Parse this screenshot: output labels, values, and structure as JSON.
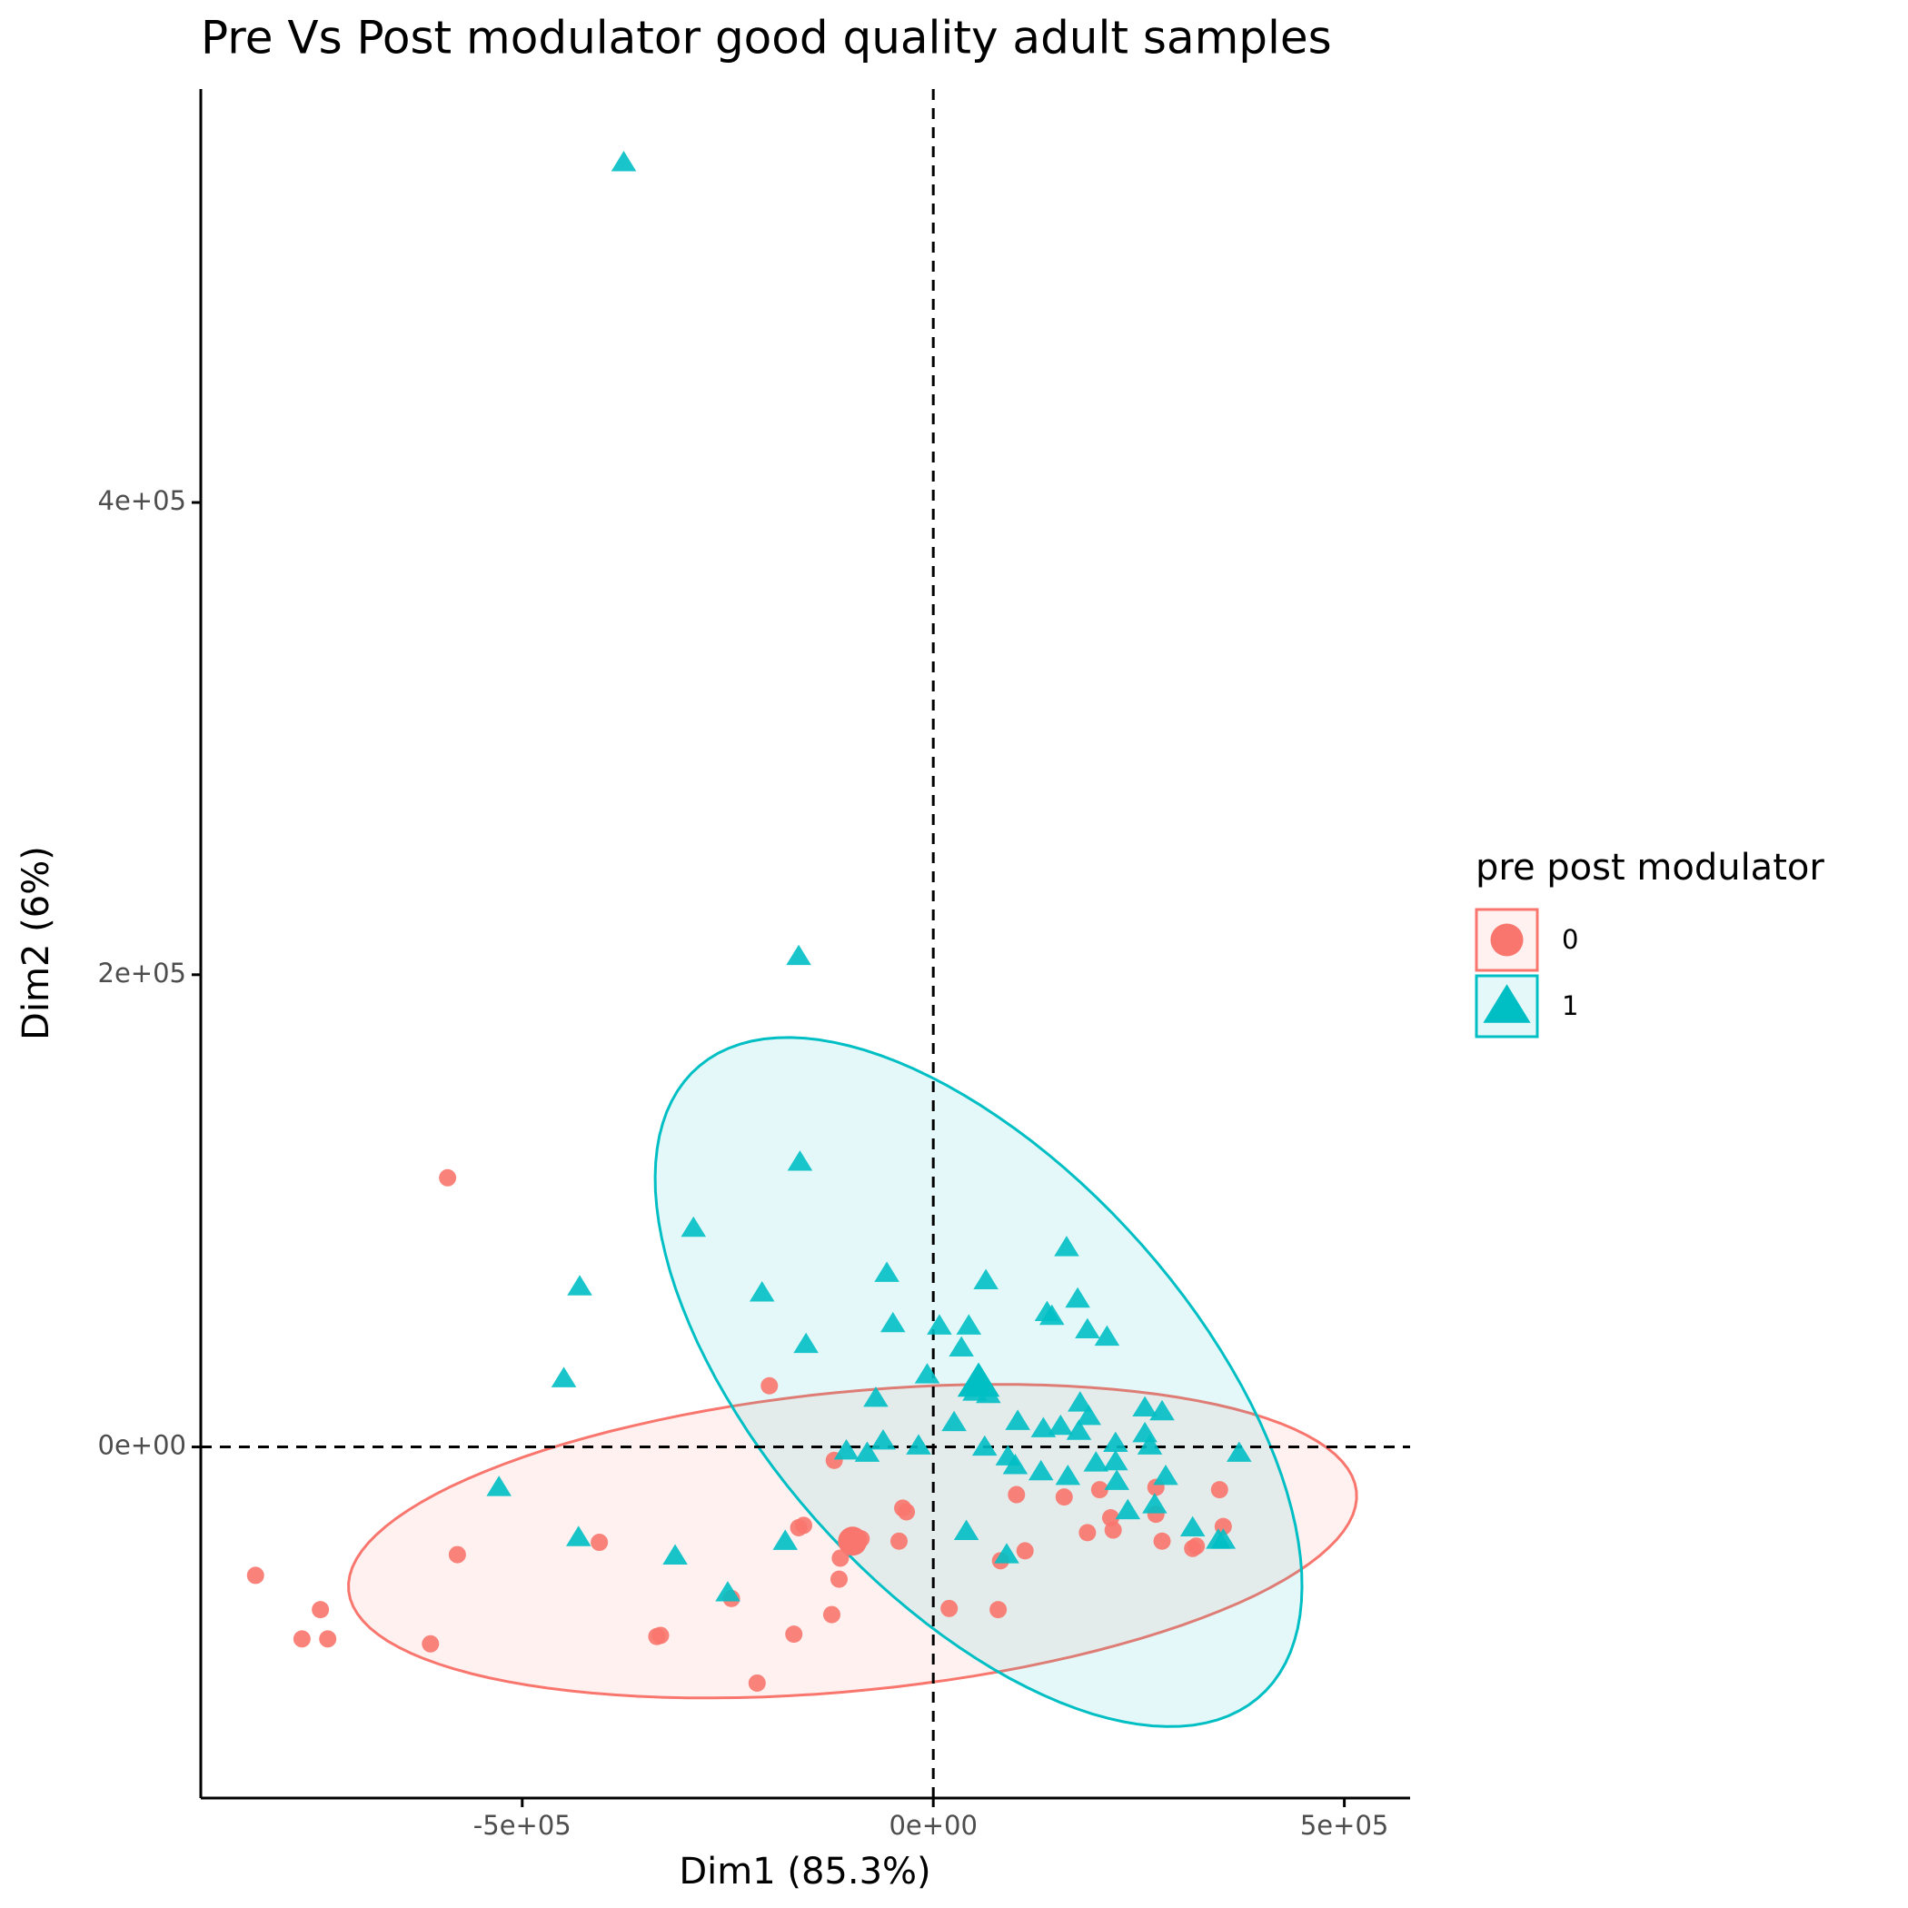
{
  "chart_data": {
    "type": "scatter",
    "title": "Pre Vs Post modulator good quality adult samples",
    "x_label": "Dim1 (85.3%)",
    "y_label": "Dim2 (6%)",
    "legend_title": "pre post modulator",
    "legend_position": "right",
    "xlim": [
      -891000,
      580000
    ],
    "ylim": [
      -148700,
      575100
    ],
    "xticks": [
      {
        "value": -500000,
        "label": "-5e+05"
      },
      {
        "value": 0,
        "label": "0e+00"
      },
      {
        "value": 500000,
        "label": "5e+05"
      }
    ],
    "yticks": [
      {
        "value": 0,
        "label": "0e+00"
      },
      {
        "value": 200000,
        "label": "2e+05"
      },
      {
        "value": 400000,
        "label": "4e+05"
      }
    ],
    "reference_lines": {
      "x": 0,
      "y": 0
    },
    "series": [
      {
        "name": "0",
        "color": "#F8766D",
        "shape": "circle",
        "centroid": {
          "x": -98200,
          "y": -39900
        },
        "ellipse": {
          "a": [
            611600,
            14500
          ],
          "b": [
            44600,
            64800
          ]
        },
        "x": [
          -824400,
          -745500,
          -767900,
          -736600,
          -611600,
          -590800,
          -578900,
          -406200,
          -336300,
          -331800,
          -245500,
          -214300,
          -199400,
          -169600,
          -163700,
          -157700,
          -123500,
          -120500,
          -114600,
          -113100,
          -87800,
          -41700,
          -37200,
          -32700,
          19300,
          78900,
          81800,
          101200,
          111600,
          159200,
          187500,
          202400,
          215800,
          218800,
          270800,
          270800,
          278300,
          315500,
          319900,
          348200,
          352700
        ],
        "values": [
          -54400,
          -68900,
          -81300,
          -81300,
          -83400,
          114000,
          -45600,
          -40400,
          -80300,
          -79800,
          -64200,
          -100000,
          25900,
          -79300,
          -34200,
          -33200,
          -71000,
          -5700,
          -56000,
          -47100,
          -38900,
          -39900,
          -25900,
          -27500,
          -68400,
          -68900,
          -48200,
          -20200,
          -44000,
          -21200,
          -36300,
          -18100,
          -30000,
          -35200,
          -17100,
          -28500,
          -39900,
          -43000,
          -42000,
          -18100,
          -33700
        ]
      },
      {
        "name": "1",
        "color": "#00BFC4",
        "shape": "triangle",
        "centroid": {
          "x": 55100,
          "y": 27500
        },
        "ellipse": {
          "a": [
            -119000,
            138300
          ],
          "b": [
            375000,
            -46600
          ]
        },
        "x": [
          -376500,
          -163700,
          -162200,
          -291700,
          -430100,
          -208300,
          -56500,
          64000,
          162200,
          175600,
          -49100,
          7400,
          43200,
          138400,
          144300,
          187500,
          211300,
          -154800,
          34200,
          -449400,
          -7400,
          -69900,
          50600,
          67000,
          55100,
          178600,
          257400,
          278300,
          25300,
          102700,
          133900,
          154800,
          189000,
          257400,
          263400,
          -61000,
          -105700,
          -80400,
          -17900,
          62500,
          90800,
          99700,
          177100,
          197900,
          221700,
          221700,
          372000,
          131000,
          163700,
          223200,
          282700,
          -528300,
          269300,
          236600,
          -431500,
          -180100,
          -314000,
          40200,
          315500,
          346700,
          352700,
          89300,
          -250000
        ],
        "values": [
          544000,
          207800,
          120700,
          92700,
          67900,
          65300,
          73600,
          70500,
          84500,
          62700,
          52300,
          51300,
          51300,
          57000,
          55400,
          49700,
          46600,
          43500,
          42000,
          29000,
          30600,
          20700,
          23300,
          22300,
          29500,
          18700,
          16600,
          15000,
          10400,
          10900,
          7800,
          8800,
          13000,
          5700,
          500,
          2600,
          -1600,
          -2600,
          500,
          0,
          -4100,
          -7800,
          6700,
          -6700,
          1600,
          -6200,
          -2600,
          -10400,
          -12400,
          -14500,
          -12400,
          -17100,
          -24400,
          -26900,
          -38300,
          -39900,
          -46100,
          -35700,
          -34200,
          -39400,
          -39400,
          -45600,
          -61700
        ]
      }
    ]
  }
}
